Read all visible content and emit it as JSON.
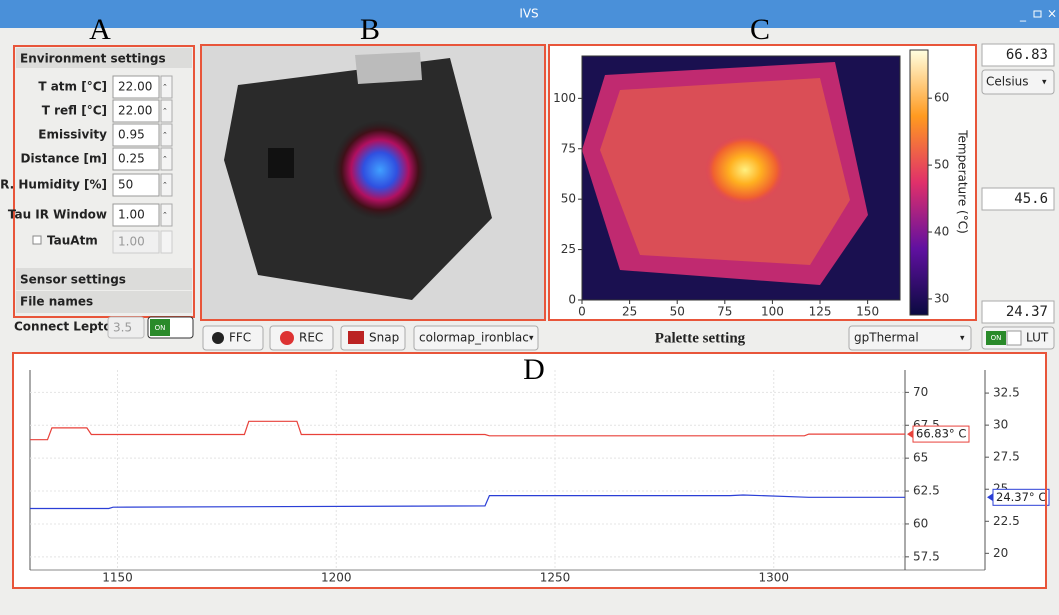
{
  "window": {
    "title": "IVS"
  },
  "region_labels": [
    "A",
    "B",
    "C",
    "D"
  ],
  "environment": {
    "header": "Environment settings",
    "rows": [
      {
        "label": "T atm [°C]",
        "value": "22.00"
      },
      {
        "label": "T refl [°C]",
        "value": "22.00"
      },
      {
        "label": "Emissivity",
        "value": "0.95"
      },
      {
        "label": "Distance [m]",
        "value": "0.25"
      },
      {
        "label": "R. Humidity [%]",
        "value": "50"
      },
      {
        "label": "Tau IR Window",
        "value": "1.00"
      }
    ],
    "tau_atm": {
      "label": "TauAtm",
      "value": "1.00"
    }
  },
  "sections": [
    "Sensor settings",
    "File names"
  ],
  "connect": {
    "label": "Connect Lepton",
    "version": "3.5",
    "toggle": "ON"
  },
  "toolbar": {
    "ffc": "FFC",
    "rec": "REC",
    "snap": "Snap",
    "colormap": "colormap_ironblack",
    "palette_label": "Palette setting",
    "palette": "gpThermal",
    "lut_toggle": "ON",
    "lut": "LUT"
  },
  "readouts": {
    "max": "66.83",
    "unit": "Celsius",
    "mid": "45.6",
    "min": "24.37"
  },
  "thermal_plot": {
    "xlim": [
      0,
      167
    ],
    "ylim": [
      0,
      121
    ],
    "xticks": [
      0,
      25,
      50,
      75,
      100,
      125,
      150
    ],
    "yticks": [
      0,
      25,
      50,
      75,
      100
    ],
    "colorbar": {
      "label": "Temperature (°C)",
      "lim": [
        27.6,
        67.2
      ],
      "ticks": [
        30,
        40,
        50,
        60
      ]
    }
  },
  "trend_plot": {
    "xlim": [
      1130,
      1330
    ],
    "ylim": [
      56.5,
      71.7
    ],
    "y2lim": [
      18.7,
      34.3
    ],
    "xticks": [
      1150,
      1200,
      1250,
      1300
    ],
    "yticks": [
      57.5,
      60,
      62.5,
      65,
      67.5,
      70
    ],
    "y2ticks": [
      20,
      22.5,
      25,
      27.5,
      30,
      32.5
    ],
    "series": [
      {
        "color": "#e8413a",
        "x": [
          1130,
          1134,
          1135,
          1143,
          1144,
          1179,
          1180,
          1191,
          1192,
          1234,
          1235,
          1307,
          1308,
          1330
        ],
        "values": [
          66.4,
          66.4,
          67.3,
          67.3,
          66.8,
          66.8,
          67.8,
          67.8,
          66.8,
          66.8,
          66.7,
          66.7,
          66.83,
          66.83
        ],
        "end_label": "66.83° C"
      },
      {
        "color": "#2b3fd6",
        "axis": "y2",
        "x": [
          1130,
          1148,
          1149,
          1234,
          1235,
          1290,
          1293,
          1308,
          1330
        ],
        "values": [
          23.5,
          23.5,
          23.6,
          23.7,
          24.5,
          24.5,
          24.55,
          24.37,
          24.37
        ],
        "end_label": "24.37° C"
      }
    ]
  }
}
